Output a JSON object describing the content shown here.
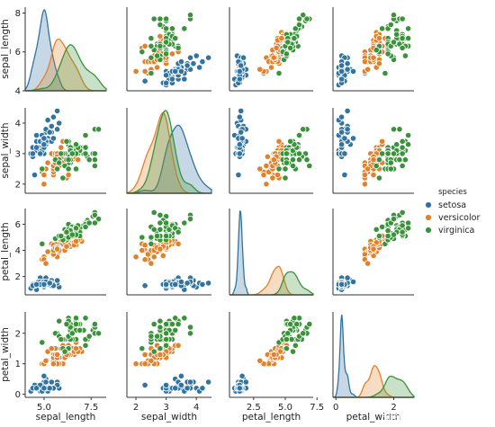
{
  "chart_data": {
    "type": "scatter",
    "kind": "pairplot",
    "variables": [
      "sepal_length",
      "sepal_width",
      "petal_length",
      "petal_width"
    ],
    "diagonal": "kde",
    "legend": {
      "title": "species",
      "placement": "right"
    },
    "species": [
      {
        "name": "setosa",
        "color": "#3274a1"
      },
      {
        "name": "versicolor",
        "color": "#e1812c"
      },
      {
        "name": "virginica",
        "color": "#3a923a"
      }
    ],
    "ranges": {
      "sepal_length": [
        4.0,
        8.3
      ],
      "sepal_width": [
        1.7,
        4.5
      ],
      "petal_length": [
        0.6,
        7.2
      ],
      "petal_width": [
        -0.1,
        2.7
      ]
    },
    "y_ticks": {
      "sepal_length": [
        4,
        6,
        8
      ],
      "sepal_width": [
        2,
        3,
        4
      ],
      "petal_length": [
        2,
        4,
        6
      ],
      "petal_width": [
        0,
        1,
        2
      ]
    },
    "x_ticks": {
      "sepal_length": [
        "5.0",
        "7.5"
      ],
      "sepal_width": [
        "2",
        "3",
        "4"
      ],
      "petal_length": [
        "2.5",
        "5.0",
        "7.5"
      ],
      "petal_width": [
        "0",
        "2"
      ]
    },
    "observations": {
      "setosa": [
        [
          5.1,
          3.5,
          1.4,
          0.2
        ],
        [
          4.9,
          3.0,
          1.4,
          0.2
        ],
        [
          4.7,
          3.2,
          1.3,
          0.2
        ],
        [
          4.6,
          3.1,
          1.5,
          0.2
        ],
        [
          5.0,
          3.6,
          1.4,
          0.2
        ],
        [
          5.4,
          3.9,
          1.7,
          0.4
        ],
        [
          4.6,
          3.4,
          1.4,
          0.3
        ],
        [
          5.0,
          3.4,
          1.5,
          0.2
        ],
        [
          4.4,
          2.9,
          1.4,
          0.2
        ],
        [
          4.9,
          3.1,
          1.5,
          0.1
        ],
        [
          5.4,
          3.7,
          1.5,
          0.2
        ],
        [
          4.8,
          3.4,
          1.6,
          0.2
        ],
        [
          4.8,
          3.0,
          1.4,
          0.1
        ],
        [
          4.3,
          3.0,
          1.1,
          0.1
        ],
        [
          5.8,
          4.0,
          1.2,
          0.2
        ],
        [
          5.7,
          4.4,
          1.5,
          0.4
        ],
        [
          5.4,
          3.9,
          1.3,
          0.4
        ],
        [
          5.1,
          3.5,
          1.4,
          0.3
        ],
        [
          5.7,
          3.8,
          1.7,
          0.3
        ],
        [
          5.1,
          3.8,
          1.5,
          0.3
        ],
        [
          5.4,
          3.4,
          1.7,
          0.2
        ],
        [
          5.1,
          3.7,
          1.5,
          0.4
        ],
        [
          4.6,
          3.6,
          1.0,
          0.2
        ],
        [
          5.1,
          3.3,
          1.7,
          0.5
        ],
        [
          4.8,
          3.4,
          1.9,
          0.2
        ],
        [
          5.0,
          3.0,
          1.6,
          0.2
        ],
        [
          5.0,
          3.4,
          1.6,
          0.4
        ],
        [
          5.2,
          3.5,
          1.5,
          0.2
        ],
        [
          5.2,
          3.4,
          1.4,
          0.2
        ],
        [
          4.7,
          3.2,
          1.6,
          0.2
        ],
        [
          4.8,
          3.1,
          1.6,
          0.2
        ],
        [
          5.4,
          3.4,
          1.5,
          0.4
        ],
        [
          5.2,
          4.1,
          1.5,
          0.1
        ],
        [
          5.5,
          4.2,
          1.4,
          0.2
        ],
        [
          4.9,
          3.1,
          1.5,
          0.2
        ],
        [
          5.0,
          3.2,
          1.2,
          0.2
        ],
        [
          5.5,
          3.5,
          1.3,
          0.2
        ],
        [
          4.9,
          3.6,
          1.4,
          0.1
        ],
        [
          4.4,
          3.0,
          1.3,
          0.2
        ],
        [
          5.1,
          3.4,
          1.5,
          0.2
        ],
        [
          5.0,
          3.5,
          1.3,
          0.3
        ],
        [
          4.5,
          2.3,
          1.3,
          0.3
        ],
        [
          4.4,
          3.2,
          1.3,
          0.2
        ],
        [
          5.0,
          3.5,
          1.6,
          0.6
        ],
        [
          5.1,
          3.8,
          1.9,
          0.4
        ],
        [
          4.8,
          3.0,
          1.4,
          0.3
        ],
        [
          5.1,
          3.8,
          1.6,
          0.2
        ],
        [
          4.6,
          3.2,
          1.4,
          0.2
        ],
        [
          5.3,
          3.7,
          1.5,
          0.2
        ],
        [
          5.0,
          3.3,
          1.4,
          0.2
        ]
      ],
      "versicolor": [
        [
          7.0,
          3.2,
          4.7,
          1.4
        ],
        [
          6.4,
          3.2,
          4.5,
          1.5
        ],
        [
          6.9,
          3.1,
          4.9,
          1.5
        ],
        [
          5.5,
          2.3,
          4.0,
          1.3
        ],
        [
          6.5,
          2.8,
          4.6,
          1.5
        ],
        [
          5.7,
          2.8,
          4.5,
          1.3
        ],
        [
          6.3,
          3.3,
          4.7,
          1.6
        ],
        [
          4.9,
          2.4,
          3.3,
          1.0
        ],
        [
          6.6,
          2.9,
          4.6,
          1.3
        ],
        [
          5.2,
          2.7,
          3.9,
          1.4
        ],
        [
          5.0,
          2.0,
          3.5,
          1.0
        ],
        [
          5.9,
          3.0,
          4.2,
          1.5
        ],
        [
          6.0,
          2.2,
          4.0,
          1.0
        ],
        [
          6.1,
          2.9,
          4.7,
          1.4
        ],
        [
          5.6,
          2.9,
          3.6,
          1.3
        ],
        [
          6.7,
          3.1,
          4.4,
          1.4
        ],
        [
          5.6,
          3.0,
          4.5,
          1.5
        ],
        [
          5.8,
          2.7,
          4.1,
          1.0
        ],
        [
          6.2,
          2.2,
          4.5,
          1.5
        ],
        [
          5.6,
          2.5,
          3.9,
          1.1
        ],
        [
          5.9,
          3.2,
          4.8,
          1.8
        ],
        [
          6.1,
          2.8,
          4.0,
          1.3
        ],
        [
          6.3,
          2.5,
          4.9,
          1.5
        ],
        [
          6.1,
          2.8,
          4.7,
          1.2
        ],
        [
          6.4,
          2.9,
          4.3,
          1.3
        ],
        [
          6.6,
          3.0,
          4.4,
          1.4
        ],
        [
          6.8,
          2.8,
          4.8,
          1.4
        ],
        [
          6.7,
          3.0,
          5.0,
          1.7
        ],
        [
          6.0,
          2.9,
          4.5,
          1.5
        ],
        [
          5.7,
          2.6,
          3.5,
          1.0
        ],
        [
          5.5,
          2.4,
          3.8,
          1.1
        ],
        [
          5.5,
          2.4,
          3.7,
          1.0
        ],
        [
          5.8,
          2.7,
          3.9,
          1.2
        ],
        [
          6.0,
          2.7,
          5.1,
          1.6
        ],
        [
          5.4,
          3.0,
          4.5,
          1.5
        ],
        [
          6.0,
          3.4,
          4.5,
          1.6
        ],
        [
          6.7,
          3.1,
          4.7,
          1.5
        ],
        [
          6.3,
          2.3,
          4.4,
          1.3
        ],
        [
          5.6,
          3.0,
          4.1,
          1.3
        ],
        [
          5.5,
          2.5,
          4.0,
          1.3
        ],
        [
          5.5,
          2.6,
          4.4,
          1.2
        ],
        [
          6.1,
          3.0,
          4.6,
          1.4
        ],
        [
          5.8,
          2.6,
          4.0,
          1.2
        ],
        [
          5.0,
          2.3,
          3.3,
          1.0
        ],
        [
          5.6,
          2.7,
          4.2,
          1.3
        ],
        [
          5.7,
          3.0,
          4.2,
          1.2
        ],
        [
          5.7,
          2.9,
          4.2,
          1.3
        ],
        [
          6.2,
          2.9,
          4.3,
          1.3
        ],
        [
          5.1,
          2.5,
          3.0,
          1.1
        ],
        [
          5.7,
          2.8,
          4.1,
          1.3
        ]
      ],
      "virginica": [
        [
          6.3,
          3.3,
          6.0,
          2.5
        ],
        [
          5.8,
          2.7,
          5.1,
          1.9
        ],
        [
          7.1,
          3.0,
          5.9,
          2.1
        ],
        [
          6.3,
          2.9,
          5.6,
          1.8
        ],
        [
          6.5,
          3.0,
          5.8,
          2.2
        ],
        [
          7.6,
          3.0,
          6.6,
          2.1
        ],
        [
          4.9,
          2.5,
          4.5,
          1.7
        ],
        [
          7.3,
          2.9,
          6.3,
          1.8
        ],
        [
          6.7,
          2.5,
          5.8,
          1.8
        ],
        [
          7.2,
          3.6,
          6.1,
          2.5
        ],
        [
          6.5,
          3.2,
          5.1,
          2.0
        ],
        [
          6.4,
          2.7,
          5.3,
          1.9
        ],
        [
          6.8,
          3.0,
          5.5,
          2.1
        ],
        [
          5.7,
          2.5,
          5.0,
          2.0
        ],
        [
          5.8,
          2.8,
          5.1,
          2.4
        ],
        [
          6.4,
          3.2,
          5.3,
          2.3
        ],
        [
          6.5,
          3.0,
          5.5,
          1.8
        ],
        [
          7.7,
          3.8,
          6.7,
          2.2
        ],
        [
          7.7,
          2.6,
          6.9,
          2.3
        ],
        [
          6.0,
          2.2,
          5.0,
          1.5
        ],
        [
          6.9,
          3.2,
          5.7,
          2.3
        ],
        [
          5.6,
          2.8,
          4.9,
          2.0
        ],
        [
          7.7,
          2.8,
          6.7,
          2.0
        ],
        [
          6.3,
          2.7,
          4.9,
          1.8
        ],
        [
          6.7,
          3.3,
          5.7,
          2.1
        ],
        [
          7.2,
          3.2,
          6.0,
          1.8
        ],
        [
          6.2,
          2.8,
          4.8,
          1.8
        ],
        [
          6.1,
          3.0,
          4.9,
          1.8
        ],
        [
          6.4,
          2.8,
          5.6,
          2.1
        ],
        [
          7.2,
          3.0,
          5.8,
          1.6
        ],
        [
          7.4,
          2.8,
          6.1,
          1.9
        ],
        [
          7.9,
          3.8,
          6.4,
          2.0
        ],
        [
          6.4,
          2.8,
          5.6,
          2.2
        ],
        [
          6.3,
          2.8,
          5.1,
          1.5
        ],
        [
          6.1,
          2.6,
          5.6,
          1.4
        ],
        [
          7.7,
          3.0,
          6.1,
          2.3
        ],
        [
          6.3,
          3.4,
          5.6,
          2.4
        ],
        [
          6.4,
          3.1,
          5.5,
          1.8
        ],
        [
          6.0,
          3.0,
          4.8,
          1.8
        ],
        [
          6.9,
          3.1,
          5.4,
          2.1
        ],
        [
          6.7,
          3.1,
          5.6,
          2.4
        ],
        [
          6.9,
          3.1,
          5.1,
          2.3
        ],
        [
          5.8,
          2.7,
          5.1,
          1.9
        ],
        [
          6.8,
          3.2,
          5.9,
          2.3
        ],
        [
          6.7,
          3.3,
          5.7,
          2.5
        ],
        [
          6.7,
          3.0,
          5.2,
          2.3
        ],
        [
          6.3,
          2.5,
          5.0,
          1.9
        ],
        [
          6.5,
          3.0,
          5.2,
          2.0
        ],
        [
          6.2,
          3.4,
          5.4,
          2.3
        ],
        [
          5.9,
          3.0,
          5.1,
          1.8
        ]
      ]
    }
  },
  "watermark": "知乎 @Python引导人"
}
